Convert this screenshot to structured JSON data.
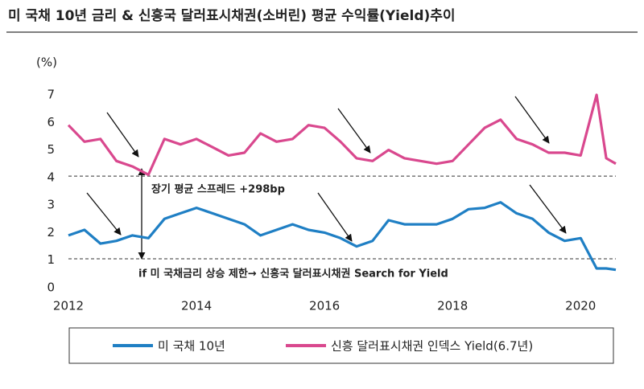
{
  "chart_data": {
    "type": "line",
    "title": "미 국채 10년 금리 & 신흥국 달러표시채권(소버린) 평균 수익률(Yield)추이",
    "y_label": "(%)",
    "x": [
      2012,
      2012.25,
      2012.5,
      2012.75,
      2013,
      2013.25,
      2013.5,
      2013.75,
      2014,
      2014.25,
      2014.5,
      2014.75,
      2015,
      2015.25,
      2015.5,
      2015.75,
      2016,
      2016.25,
      2016.5,
      2016.75,
      2017,
      2017.25,
      2017.5,
      2017.75,
      2018,
      2018.25,
      2018.5,
      2018.75,
      2019,
      2019.25,
      2019.5,
      2019.75,
      2020,
      2020.25,
      2020.4,
      2020.55
    ],
    "series": [
      {
        "name": "미 국채 10년",
        "color": "#1f7fc4",
        "values": [
          1.9,
          2.1,
          1.6,
          1.7,
          1.9,
          1.8,
          2.5,
          2.7,
          2.9,
          2.7,
          2.5,
          2.3,
          1.9,
          2.1,
          2.3,
          2.1,
          2.0,
          1.8,
          1.5,
          1.7,
          2.45,
          2.3,
          2.3,
          2.3,
          2.5,
          2.85,
          2.9,
          3.1,
          2.7,
          2.5,
          2.0,
          1.7,
          1.8,
          0.7,
          0.7,
          0.65
        ]
      },
      {
        "name": "신흥 달러표시채권 인덱스 Yield(6.7년)",
        "color": "#d9488e",
        "values": [
          5.9,
          5.3,
          5.4,
          4.6,
          4.4,
          4.1,
          5.4,
          5.2,
          5.4,
          5.1,
          4.8,
          4.9,
          5.6,
          5.3,
          5.4,
          5.9,
          5.8,
          5.3,
          4.7,
          4.6,
          5.0,
          4.7,
          4.6,
          4.5,
          4.6,
          5.2,
          5.8,
          6.1,
          5.4,
          5.2,
          4.9,
          4.9,
          4.8,
          7.0,
          4.7,
          4.5
        ]
      }
    ],
    "xlim": [
      2012,
      2020.55
    ],
    "xticks": [
      2012,
      2014,
      2016,
      2018,
      2020
    ],
    "ylim": [
      0,
      7
    ],
    "yticks": [
      0,
      1,
      2,
      3,
      4,
      5,
      6,
      7
    ],
    "reference_lines": [
      4.05,
      1.05
    ],
    "annotations": [
      "장기 평균 스프레드 +298bp",
      "if 미 국채금리 상승 제한→ 신흥국 달러표시채권  Search for Yield"
    ],
    "legend": "bottom"
  }
}
